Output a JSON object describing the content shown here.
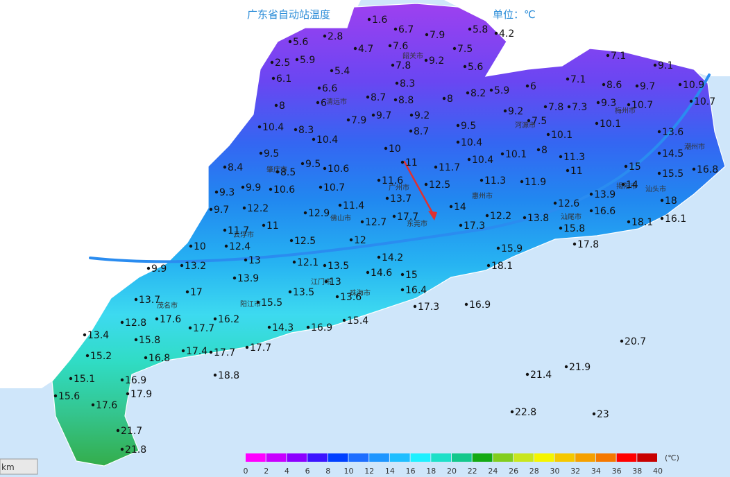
{
  "map": {
    "title": "广东省自动站温度",
    "unit_note": "单位：℃",
    "cities": [
      "清远市",
      "韶关市",
      "河源市",
      "梅州市",
      "潮州市",
      "揭阳市",
      "汕头市",
      "汕尾市",
      "惠州市",
      "广州市",
      "东莞市",
      "佛山市",
      "肇庆市",
      "云浮市",
      "阳江市",
      "江门市",
      "珠海市",
      "茂名市"
    ],
    "stations": [
      5.6,
      2.8,
      1.6,
      6.7,
      7.9,
      5.8,
      4.2,
      4.7,
      7.6,
      7.5,
      2.5,
      5.9,
      7.8,
      9.2,
      5.6,
      5.4,
      6.1,
      6.6,
      8.3,
      8.2,
      5.9,
      6,
      7.1,
      9.1,
      7.1,
      8.6,
      9.7,
      10.9,
      8,
      6,
      8.7,
      8.8,
      8,
      10.7,
      7.8,
      7.3,
      9.3,
      10.7,
      9.2,
      7.9,
      9.7,
      9.2,
      7.5,
      10.1,
      10.4,
      8.3,
      8.7,
      9.5,
      10.1,
      13.6,
      10.4,
      10.4,
      10,
      8,
      11.3,
      14.5,
      9.5,
      8.4,
      8.5,
      9.5,
      10.6,
      11,
      11.7,
      10.4,
      10.1,
      11,
      15,
      15.5,
      16.8,
      11.6,
      12.5,
      11.3,
      11.9,
      14,
      9.3,
      9.9,
      10.6,
      10.7,
      13.7,
      13.9,
      18,
      9.7,
      12.2,
      11.4,
      14,
      12.6,
      16.6,
      12.2,
      13.8,
      12.9,
      11,
      12.7,
      17.7,
      17.3,
      18.1,
      16.1,
      11.7,
      15.8,
      12.4,
      12.5,
      12,
      10,
      17.8,
      13,
      12.1,
      13.5,
      14.2,
      15.9,
      9.9,
      13.2,
      18.1,
      14.6,
      15,
      13.9,
      13,
      17,
      13.5,
      13.6,
      13.7,
      15.5,
      16.4,
      17.3,
      16.9,
      17.6,
      16.2,
      12.8,
      17.7,
      14.3,
      16.9,
      15.4,
      13.4,
      15.8,
      17.4,
      17.7,
      17.7,
      16.8,
      15.2,
      20.7,
      15.1,
      18.8,
      16.9,
      21.9,
      21.4,
      15.6,
      17.9,
      17.6,
      22.8,
      23,
      21.7,
      21.8
    ],
    "legend": {
      "unit": "(℃)",
      "ticks": [
        0,
        2,
        4,
        6,
        8,
        10,
        12,
        14,
        16,
        18,
        20,
        22,
        24,
        26,
        28,
        30,
        32,
        34,
        36,
        38,
        40
      ],
      "colors": [
        "#ff00ff",
        "#c800ff",
        "#8c00ff",
        "#3c14ff",
        "#0040ff",
        "#1e6eff",
        "#1e96ff",
        "#1ebeff",
        "#1ef0ff",
        "#1ee0c8",
        "#14c88c",
        "#14aa14",
        "#82cd1e",
        "#c8e61e",
        "#f5f500",
        "#f5c800",
        "#f5a000",
        "#f57800",
        "#ff0000",
        "#c80000"
      ]
    },
    "scale_label": "km"
  }
}
